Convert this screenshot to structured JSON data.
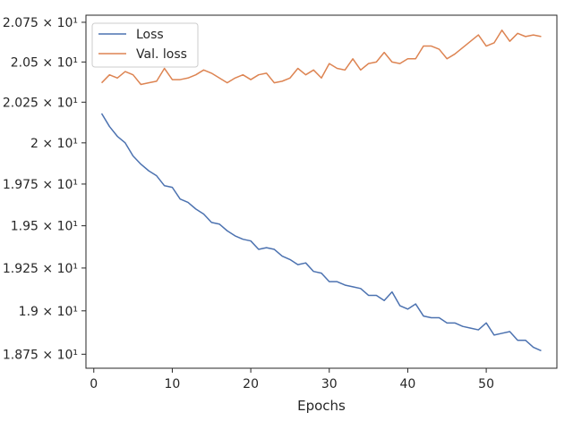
{
  "chart_data": {
    "type": "line",
    "xlabel": "Epochs",
    "ylabel": "",
    "xlim": [
      -1,
      59
    ],
    "ylim": [
      18.67,
      20.795
    ],
    "x_ticks": [
      0,
      10,
      20,
      30,
      40,
      50
    ],
    "y_ticks": [
      {
        "value": 18.75,
        "label": "1.875 × 10¹"
      },
      {
        "value": 19.0,
        "label": "1.9 × 10¹"
      },
      {
        "value": 19.25,
        "label": "1.925 × 10¹"
      },
      {
        "value": 19.5,
        "label": "1.95 × 10¹"
      },
      {
        "value": 19.75,
        "label": "1.975 × 10¹"
      },
      {
        "value": 20.0,
        "label": "2 × 10¹"
      },
      {
        "value": 20.25,
        "label": "2.025 × 10¹"
      },
      {
        "value": 20.5,
        "label": "2.05 × 10¹"
      },
      {
        "value": 20.75,
        "label": "2.075 × 10¹"
      }
    ],
    "y_scale": "log",
    "grid": false,
    "legend": "top-left",
    "x": [
      1,
      2,
      3,
      4,
      5,
      6,
      7,
      8,
      9,
      10,
      11,
      12,
      13,
      14,
      15,
      16,
      17,
      18,
      19,
      20,
      21,
      22,
      23,
      24,
      25,
      26,
      27,
      28,
      29,
      30,
      31,
      32,
      33,
      34,
      35,
      36,
      37,
      38,
      39,
      40,
      41,
      42,
      43,
      44,
      45,
      46,
      47,
      48,
      49,
      50,
      51,
      52,
      53,
      54,
      55,
      56,
      57
    ],
    "series": [
      {
        "name": "Loss",
        "color": "#4c72b0",
        "values": [
          20.18,
          20.1,
          20.04,
          20.0,
          19.92,
          19.87,
          19.83,
          19.8,
          19.74,
          19.73,
          19.66,
          19.64,
          19.6,
          19.57,
          19.52,
          19.51,
          19.47,
          19.44,
          19.42,
          19.41,
          19.36,
          19.37,
          19.36,
          19.32,
          19.3,
          19.27,
          19.28,
          19.23,
          19.22,
          19.17,
          19.17,
          19.15,
          19.14,
          19.13,
          19.09,
          19.09,
          19.06,
          19.11,
          19.03,
          19.01,
          19.04,
          18.97,
          18.96,
          18.96,
          18.93,
          18.93,
          18.91,
          18.9,
          18.89,
          18.93,
          18.86,
          18.87,
          18.88,
          18.83,
          18.83,
          18.79,
          18.77
        ]
      },
      {
        "name": "Val. loss",
        "color": "#dd8452",
        "values": [
          20.37,
          20.42,
          20.4,
          20.44,
          20.42,
          20.36,
          20.37,
          20.38,
          20.46,
          20.39,
          20.39,
          20.4,
          20.42,
          20.45,
          20.43,
          20.4,
          20.37,
          20.4,
          20.42,
          20.39,
          20.42,
          20.43,
          20.37,
          20.38,
          20.4,
          20.46,
          20.42,
          20.45,
          20.4,
          20.49,
          20.46,
          20.45,
          20.52,
          20.45,
          20.49,
          20.5,
          20.56,
          20.5,
          20.49,
          20.52,
          20.52,
          20.6,
          20.6,
          20.58,
          20.52,
          20.55,
          20.59,
          20.63,
          20.67,
          20.6,
          20.62,
          20.7,
          20.63,
          20.68,
          20.66,
          20.67,
          20.66
        ]
      }
    ]
  }
}
